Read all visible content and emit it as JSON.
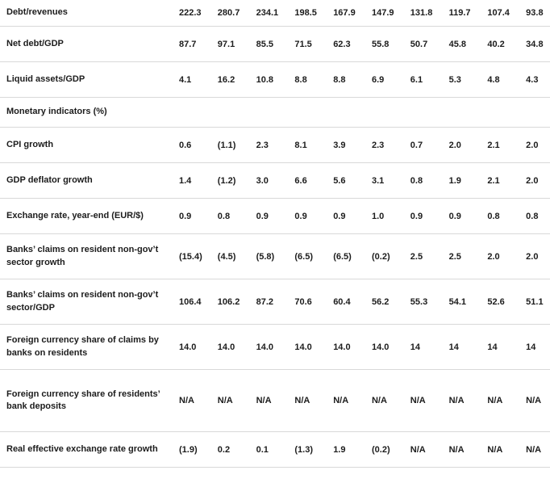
{
  "colors": {
    "text": "#1c1c1c",
    "divider": "#d9d9d9",
    "background": "#ffffff"
  },
  "table": {
    "rows": [
      {
        "label": "Debt/revenues",
        "values": [
          "222.3",
          "280.7",
          "234.1",
          "198.5",
          "167.9",
          "147.9",
          "131.8",
          "119.7",
          "107.4",
          "93.8"
        ]
      },
      {
        "label": "Net debt/GDP",
        "values": [
          "87.7",
          "97.1",
          "85.5",
          "71.5",
          "62.3",
          "55.8",
          "50.7",
          "45.8",
          "40.2",
          "34.8"
        ]
      },
      {
        "label": "Liquid assets/GDP",
        "values": [
          "4.1",
          "16.2",
          "10.8",
          "8.8",
          "8.8",
          "6.9",
          "6.1",
          "5.3",
          "4.8",
          "4.3"
        ]
      },
      {
        "label": "Monetary indicators (%)",
        "type": "section",
        "values": []
      },
      {
        "label": "CPI growth",
        "values": [
          "0.6",
          "(1.1)",
          "2.3",
          "8.1",
          "3.9",
          "2.3",
          "0.7",
          "2.0",
          "2.1",
          "2.0"
        ]
      },
      {
        "label": "GDP deflator growth",
        "values": [
          "1.4",
          "(1.2)",
          "3.0",
          "6.6",
          "5.6",
          "3.1",
          "0.8",
          "1.9",
          "2.1",
          "2.0"
        ]
      },
      {
        "label": "Exchange rate, year-end (EUR/$)",
        "values": [
          "0.9",
          "0.8",
          "0.9",
          "0.9",
          "0.9",
          "1.0",
          "0.9",
          "0.9",
          "0.8",
          "0.8"
        ]
      },
      {
        "label": "Banks’ claims on resident non-gov’t sector growth",
        "values": [
          "(15.4)",
          "(4.5)",
          "(5.8)",
          "(6.5)",
          "(6.5)",
          "(0.2)",
          "2.5",
          "2.5",
          "2.0",
          "2.0"
        ]
      },
      {
        "label": "Banks’ claims on resident non-gov’t sector/GDP",
        "values": [
          "106.4",
          "106.2",
          "87.2",
          "70.6",
          "60.4",
          "56.2",
          "55.3",
          "54.1",
          "52.6",
          "51.1"
        ]
      },
      {
        "label": "Foreign currency share of claims by banks on residents",
        "values": [
          "14.0",
          "14.0",
          "14.0",
          "14.0",
          "14.0",
          "14.0",
          "14",
          "14",
          "14",
          "14"
        ]
      },
      {
        "label": "Foreign currency share of residents’ bank deposits",
        "values": [
          "N/A",
          "N/A",
          "N/A",
          "N/A",
          "N/A",
          "N/A",
          "N/A",
          "N/A",
          "N/A",
          "N/A"
        ]
      },
      {
        "label": "Real effective exchange rate growth",
        "values": [
          "(1.9)",
          "0.2",
          "0.1",
          "(1.3)",
          "1.9",
          "(0.2)",
          "N/A",
          "N/A",
          "N/A",
          "N/A"
        ]
      }
    ]
  }
}
